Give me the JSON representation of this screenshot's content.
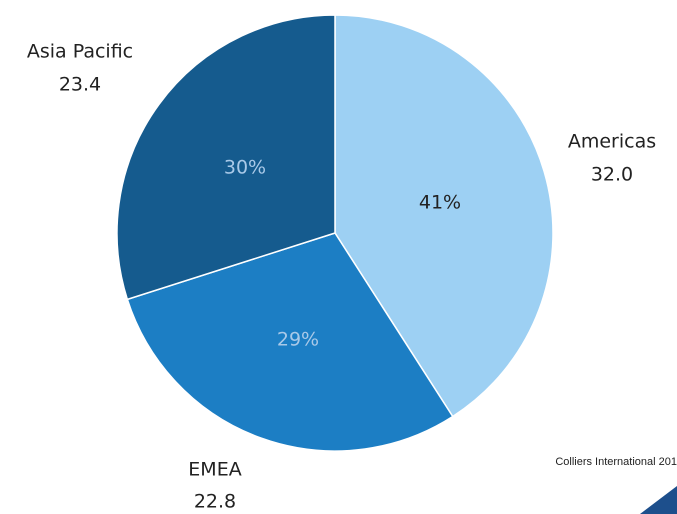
{
  "chart_data": {
    "type": "pie",
    "categories": [
      "Americas",
      "EMEA",
      "Asia Pacific"
    ],
    "values": [
      32.0,
      22.8,
      23.4
    ],
    "value_labels": [
      "32.0",
      "22.8",
      "23.4"
    ],
    "percents": [
      41,
      29,
      30
    ],
    "percent_labels": [
      "41%",
      "29%",
      "30%"
    ],
    "colors": [
      "#9dd0f3",
      "#1c7ec4",
      "#155b8e"
    ],
    "source": "Colliers International 201"
  }
}
